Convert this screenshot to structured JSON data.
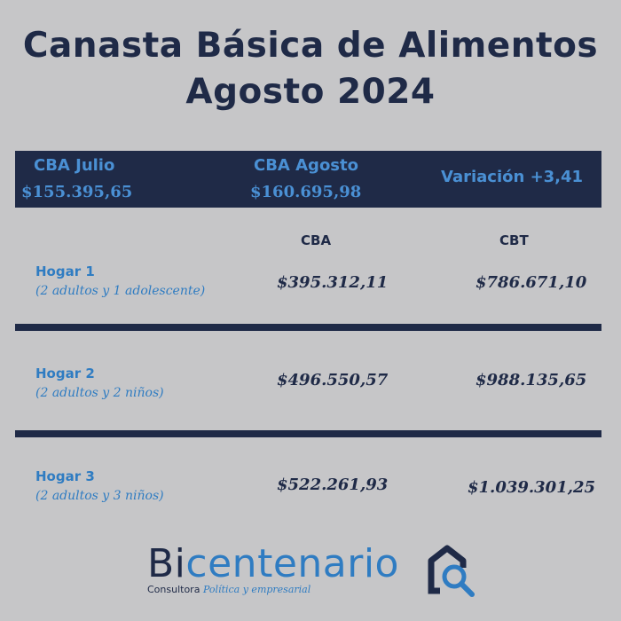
{
  "title": {
    "line1": "Canasta Básica de Alimentos",
    "line2": "Agosto 2024"
  },
  "banner": {
    "julio_label": "CBA Julio",
    "julio_value": "$155.395,65",
    "agosto_label": "CBA Agosto",
    "agosto_value": "$160.695,98",
    "variacion": "Variación +3,41"
  },
  "table": {
    "col_cba": "CBA",
    "col_cbt": "CBT",
    "rows": [
      {
        "name": "Hogar 1",
        "desc": "(2 adultos y 1 adolescente)",
        "cba": "$395.312,11",
        "cbt": "$786.671,10"
      },
      {
        "name": "Hogar 2",
        "desc": "(2 adultos y 2 niños)",
        "cba": "$496.550,57",
        "cbt": "$988.135,65"
      },
      {
        "name": "Hogar 3",
        "desc": "(2 adultos y 3 niños)",
        "cba": "$522.261,93",
        "cbt": "$1.039.301,25"
      }
    ]
  },
  "logo": {
    "word_prefix": "Bi",
    "word_rest": "centenario",
    "sub_1": "Consultora",
    "sub_2": "Política y empresarial",
    "icon": "house-magnifier-icon"
  },
  "colors": {
    "background": "#c6c6c8",
    "navy": "#1f2a47",
    "blue": "#2f7cc2"
  }
}
